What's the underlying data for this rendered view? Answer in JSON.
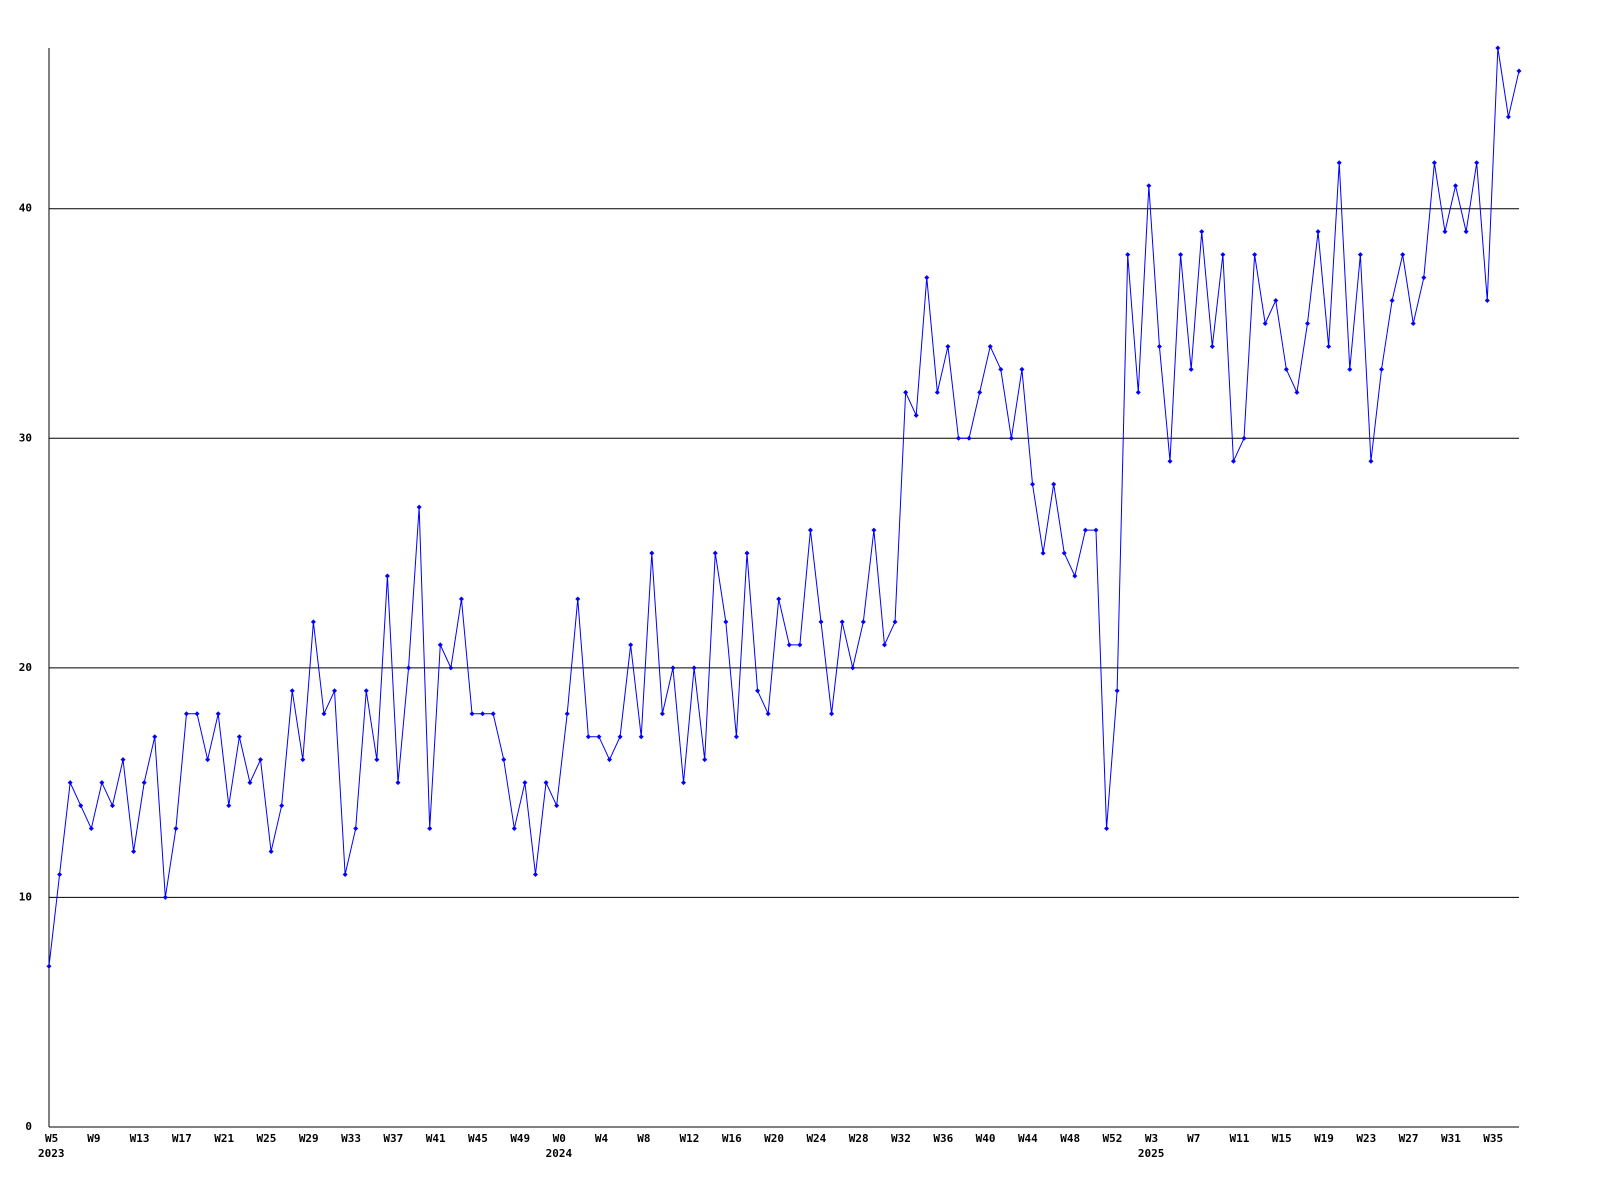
{
  "chart_data": {
    "type": "line",
    "categories": [
      "W5",
      null,
      null,
      null,
      "W9",
      null,
      null,
      null,
      "W13",
      null,
      null,
      null,
      "W17",
      null,
      null,
      null,
      "W21",
      null,
      null,
      null,
      "W25",
      null,
      null,
      null,
      "W29",
      null,
      null,
      null,
      "W33",
      null,
      null,
      null,
      "W37",
      null,
      null,
      null,
      "W41",
      null,
      null,
      null,
      "W45",
      null,
      null,
      null,
      "W49",
      null,
      null,
      null,
      "W0",
      null,
      null,
      null,
      "W4",
      null,
      null,
      null,
      "W8",
      null,
      null,
      null,
      "W12",
      null,
      null,
      null,
      "W16",
      null,
      null,
      null,
      "W20",
      null,
      null,
      null,
      "W24",
      null,
      null,
      null,
      "W28",
      null,
      null,
      null,
      "W32",
      null,
      null,
      null,
      "W36",
      null,
      null,
      null,
      "W40",
      null,
      null,
      null,
      "W44",
      null,
      null,
      null,
      "W48",
      null,
      null,
      null,
      "W52",
      null,
      null,
      null,
      "W3",
      null,
      null,
      null,
      "W7",
      null,
      null,
      null,
      "W11",
      null,
      null,
      null,
      "W15",
      null,
      null,
      null,
      "W19",
      null,
      null,
      null,
      "W23",
      null,
      null,
      null,
      "W27",
      null,
      null,
      null,
      "W31",
      null,
      null,
      null,
      "W35",
      null,
      null,
      null
    ],
    "category_years": [
      "2023",
      null,
      null,
      null,
      null,
      null,
      null,
      null,
      null,
      null,
      null,
      null,
      null,
      null,
      null,
      null,
      null,
      null,
      null,
      null,
      null,
      null,
      null,
      null,
      null,
      null,
      null,
      null,
      null,
      null,
      null,
      null,
      null,
      null,
      null,
      null,
      null,
      null,
      null,
      null,
      null,
      null,
      null,
      null,
      null,
      null,
      null,
      null,
      "2024",
      null,
      null,
      null,
      null,
      null,
      null,
      null,
      null,
      null,
      null,
      null,
      null,
      null,
      null,
      null,
      null,
      null,
      null,
      null,
      null,
      null,
      null,
      null,
      null,
      null,
      null,
      null,
      null,
      null,
      null,
      null,
      null,
      null,
      null,
      null,
      null,
      null,
      null,
      null,
      null,
      null,
      null,
      null,
      null,
      null,
      null,
      null,
      null,
      null,
      null,
      null,
      null,
      null,
      null,
      null,
      "2025",
      null,
      null,
      null,
      null,
      null,
      null,
      null,
      null,
      null,
      null,
      null,
      null,
      null,
      null,
      null,
      null,
      null,
      null,
      null,
      null,
      null,
      null,
      null,
      null,
      null,
      null,
      null,
      null,
      null,
      null,
      null,
      null,
      null,
      null,
      null
    ],
    "series": [
      {
        "color": "#0000ff",
        "values": [
          7,
          11,
          15,
          14,
          13,
          15,
          14,
          16,
          12,
          15,
          17,
          10,
          13,
          18,
          18,
          16,
          18,
          14,
          17,
          15,
          16,
          12,
          14,
          19,
          16,
          22,
          18,
          19,
          11,
          13,
          19,
          16,
          24,
          15,
          20,
          27,
          13,
          21,
          20,
          23,
          18,
          18,
          18,
          16,
          13,
          15,
          11,
          15,
          14,
          18,
          23,
          17,
          17,
          16,
          17,
          21,
          17,
          25,
          18,
          20,
          15,
          20,
          16,
          25,
          22,
          17,
          25,
          19,
          18,
          23,
          21,
          21,
          26,
          22,
          18,
          22,
          20,
          22,
          26,
          21,
          22,
          32,
          31,
          37,
          32,
          34,
          30,
          30,
          32,
          34,
          33,
          30,
          33,
          28,
          25,
          28,
          25,
          24,
          26,
          26,
          13,
          19,
          38,
          32,
          41,
          34,
          29,
          38,
          33,
          39,
          34,
          38,
          29,
          30,
          38,
          35,
          36,
          33,
          32,
          35,
          39,
          34,
          42,
          33,
          38,
          29,
          33,
          36,
          38,
          35,
          37,
          42,
          39,
          41,
          39,
          42,
          36,
          47,
          44,
          46
        ]
      }
    ],
    "ylim": [
      0,
      47
    ],
    "yticks": [
      0,
      10,
      20,
      30,
      40
    ],
    "grid": true
  }
}
